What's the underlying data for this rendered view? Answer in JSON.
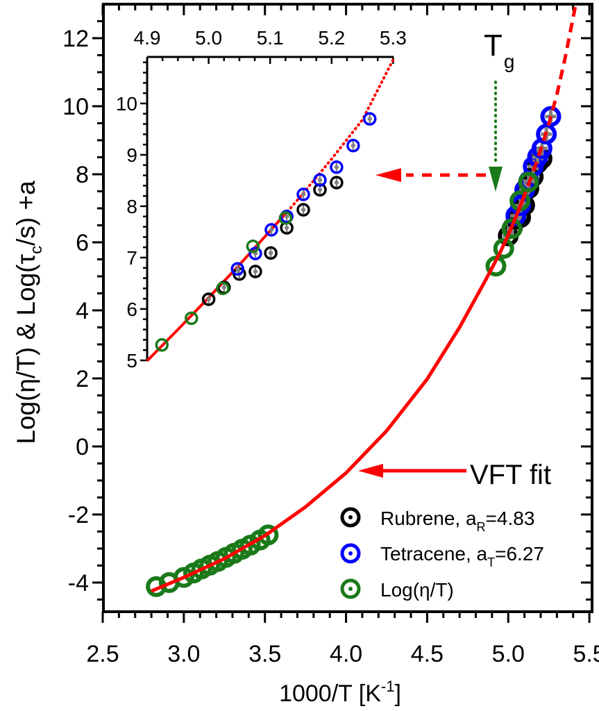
{
  "chart_data": {
    "type": "scatter",
    "title": "",
    "xlabel": "1000/T [K",
    "xlabel_sup": "-1",
    "xlabel_close": "]",
    "ylabel_parts": {
      "a": "Log(η/T) & Log(τ",
      "sub": "c",
      "b": "/s) +a"
    },
    "xlim": [
      2.5,
      5.55
    ],
    "ylim": [
      -5.2,
      12.9
    ],
    "xticks": [
      2.5,
      3.0,
      3.5,
      4.0,
      4.5,
      5.0,
      5.5
    ],
    "xtick_labels": [
      "2.5",
      "3.0",
      "3.5",
      "4.0",
      "4.5",
      "5.0",
      "5.5"
    ],
    "yticks": [
      -4,
      -2,
      0,
      2,
      4,
      6,
      8,
      10,
      12
    ],
    "ytick_labels": [
      "-4",
      "-2",
      "0",
      "2",
      "4",
      "6",
      "8",
      "10",
      "12"
    ],
    "grid": false,
    "legend_position": "bottom-right",
    "legend": [
      {
        "name": "Rubrene",
        "label_main": "Rubrene, a",
        "label_sub": "R",
        "label_tail": "=4.83",
        "color": "#000000"
      },
      {
        "name": "Tetracene",
        "label_main": "Tetracene, a",
        "label_sub": "T",
        "label_tail": "=6.27",
        "color": "#0000ff"
      },
      {
        "name": "Log(eta/T)",
        "label_main": "Log(η/T)",
        "label_sub": "",
        "label_tail": "",
        "color": "#1a7a1a"
      }
    ],
    "series": [
      {
        "name": "Log(η/T)",
        "color": "#1a7a1a",
        "points": [
          [
            2.83,
            -4.12
          ],
          [
            2.91,
            -4.0
          ],
          [
            3.0,
            -3.85
          ],
          [
            3.06,
            -3.72
          ],
          [
            3.11,
            -3.6
          ],
          [
            3.16,
            -3.49
          ],
          [
            3.21,
            -3.38
          ],
          [
            3.26,
            -3.26
          ],
          [
            3.31,
            -3.14
          ],
          [
            3.36,
            -3.02
          ],
          [
            3.41,
            -2.9
          ],
          [
            3.47,
            -2.75
          ],
          [
            3.52,
            -2.6
          ],
          [
            4.924,
            5.3
          ],
          [
            4.972,
            5.82
          ],
          [
            5.023,
            6.4
          ],
          [
            5.072,
            7.22
          ],
          [
            5.125,
            7.77
          ]
        ]
      },
      {
        "name": "Rubrene",
        "color": "#000000",
        "points": [
          [
            5.0,
            6.19
          ],
          [
            5.025,
            6.42
          ],
          [
            5.05,
            6.68
          ],
          [
            5.076,
            6.73
          ],
          [
            5.101,
            7.09
          ],
          [
            5.127,
            7.58
          ],
          [
            5.154,
            7.93
          ],
          [
            5.181,
            8.32
          ],
          [
            5.208,
            8.46
          ]
        ]
      },
      {
        "name": "Tetracene",
        "color": "#0000ff",
        "points": [
          [
            5.047,
            6.78
          ],
          [
            5.076,
            7.08
          ],
          [
            5.102,
            7.54
          ],
          [
            5.127,
            7.8
          ],
          [
            5.154,
            8.23
          ],
          [
            5.181,
            8.51
          ],
          [
            5.208,
            8.76
          ],
          [
            5.235,
            9.18
          ],
          [
            5.262,
            9.7
          ]
        ]
      }
    ],
    "fit": {
      "name": "VFT fit",
      "color": "#ff0000",
      "solid_until_x": 5.12,
      "points": [
        [
          2.8,
          -4.25
        ],
        [
          3.0,
          -3.85
        ],
        [
          3.25,
          -3.3
        ],
        [
          3.5,
          -2.62
        ],
        [
          3.75,
          -1.78
        ],
        [
          4.0,
          -0.78
        ],
        [
          4.25,
          0.46
        ],
        [
          4.5,
          1.98
        ],
        [
          4.7,
          3.5
        ],
        [
          4.85,
          4.8
        ],
        [
          4.95,
          5.7
        ],
        [
          5.0,
          6.22
        ],
        [
          5.05,
          6.78
        ],
        [
          5.1,
          7.38
        ],
        [
          5.15,
          8.02
        ],
        [
          5.2,
          8.72
        ],
        [
          5.25,
          9.48
        ],
        [
          5.3,
          10.35
        ],
        [
          5.35,
          11.4
        ],
        [
          5.4,
          12.6
        ],
        [
          5.42,
          13.1
        ]
      ]
    },
    "annotations": {
      "tg_label": "T",
      "tg_sub": "g",
      "tg_x": 5.0,
      "vft_label": "VFT fit",
      "vft_arrow_target": [
        4.02,
        -0.75
      ],
      "inset_arrow_y": 8.1
    },
    "inset": {
      "xlim": [
        4.9,
        5.3
      ],
      "ylim": [
        5.0,
        10.9
      ],
      "xticks": [
        4.9,
        5.0,
        5.1,
        5.2,
        5.3
      ],
      "xtick_labels": [
        "4.9",
        "5.0",
        "5.1",
        "5.2",
        "5.3"
      ],
      "yticks": [
        5,
        6,
        7,
        8,
        9,
        10
      ],
      "ytick_labels": [
        "5",
        "6",
        "7",
        "8",
        "9",
        "10"
      ],
      "x_axis_position": "top",
      "fit_points": [
        [
          4.9,
          4.99
        ],
        [
          4.95,
          5.6
        ],
        [
          5.0,
          6.22
        ],
        [
          5.05,
          6.86
        ],
        [
          5.1,
          7.52
        ],
        [
          5.13,
          7.92
        ],
        [
          5.15,
          8.2
        ],
        [
          5.2,
          8.92
        ],
        [
          5.25,
          9.68
        ],
        [
          5.3,
          10.85
        ]
      ],
      "solid_until_x": 5.128,
      "series": [
        {
          "name": "Log(η/T)",
          "color": "#1a7a1a",
          "points": [
            [
              4.924,
              5.3
            ],
            [
              4.972,
              5.82
            ],
            [
              5.023,
              6.4
            ],
            [
              5.072,
              7.22
            ],
            [
              5.125,
              7.77
            ]
          ]
        },
        {
          "name": "Rubrene",
          "color": "#000000",
          "points": [
            [
              5.0,
              6.19
            ],
            [
              5.025,
              6.42
            ],
            [
              5.05,
              6.68
            ],
            [
              5.076,
              6.73
            ],
            [
              5.101,
              7.09
            ],
            [
              5.127,
              7.58
            ],
            [
              5.154,
              7.93
            ],
            [
              5.181,
              8.32
            ],
            [
              5.208,
              8.46
            ]
          ]
        },
        {
          "name": "Tetracene",
          "color": "#0000ff",
          "points": [
            [
              5.047,
              6.78
            ],
            [
              5.076,
              7.08
            ],
            [
              5.102,
              7.54
            ],
            [
              5.127,
              7.8
            ],
            [
              5.154,
              8.23
            ],
            [
              5.181,
              8.51
            ],
            [
              5.208,
              8.76
            ],
            [
              5.235,
              9.18
            ],
            [
              5.262,
              9.7
            ]
          ]
        }
      ]
    }
  }
}
